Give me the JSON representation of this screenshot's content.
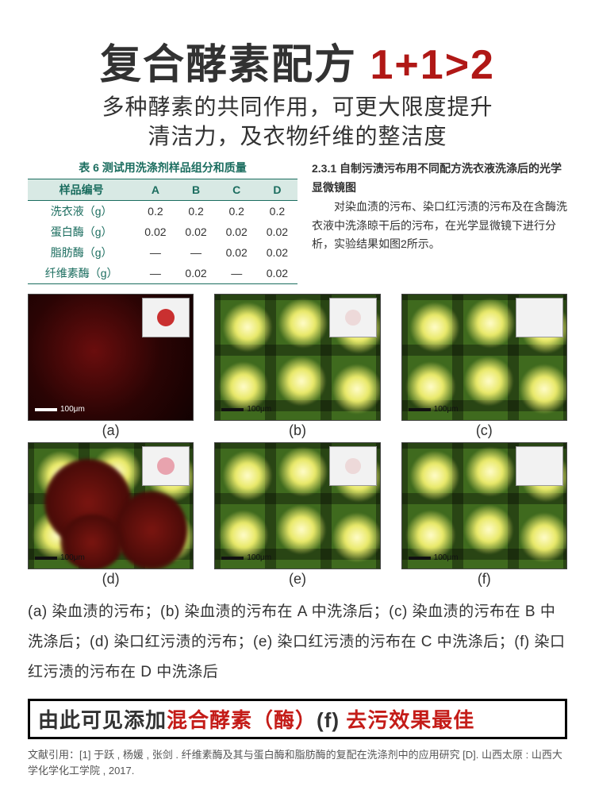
{
  "headline": {
    "black": "复合酵素配方",
    "red": "1+1>2"
  },
  "subhead": {
    "line1": "多种酵素的共同作用，可更大限度提升",
    "line2": "清洁力，及衣物纤维的整洁度"
  },
  "table": {
    "caption": "表 6 测试用洗涤剂样品组分和质量",
    "header": [
      "样品编号",
      "A",
      "B",
      "C",
      "D"
    ],
    "rows": [
      [
        "洗衣液（g）",
        "0.2",
        "0.2",
        "0.2",
        "0.2"
      ],
      [
        "蛋白酶（g）",
        "0.02",
        "0.02",
        "0.02",
        "0.02"
      ],
      [
        "脂肪酶（g）",
        "—",
        "—",
        "0.02",
        "0.02"
      ],
      [
        "纤维素酶（g）",
        "—",
        "0.02",
        "—",
        "0.02"
      ]
    ],
    "header_bg": "#d8e9e4",
    "header_color": "#1b6d5f",
    "border_color": "#1b6d5f"
  },
  "paragraph": {
    "title": "2.3.1 自制污渍污布用不同配方洗衣液洗涤后的光学显微镜图",
    "body": "对染血渍的污布、染口红污渍的污布及在含酶洗衣液中洗涤晾干后的污布，在光学显微镜下进行分析，实验结果如图2所示。"
  },
  "panels": {
    "scalebar_text": "100μm",
    "items": [
      {
        "id": "a",
        "label": "(a)",
        "style": "red",
        "inset_dot": "red",
        "scale_color": "light"
      },
      {
        "id": "b",
        "label": "(b)",
        "style": "green",
        "inset_dot": "faint",
        "scale_color": "dark"
      },
      {
        "id": "c",
        "label": "(c)",
        "style": "green",
        "inset_dot": "none",
        "scale_color": "dark"
      },
      {
        "id": "d",
        "label": "(d)",
        "style": "mixed",
        "inset_dot": "pink",
        "scale_color": "dark"
      },
      {
        "id": "e",
        "label": "(e)",
        "style": "green",
        "inset_dot": "faint",
        "scale_color": "dark"
      },
      {
        "id": "f",
        "label": "(f)",
        "style": "green",
        "inset_dot": "none",
        "scale_color": "dark"
      }
    ]
  },
  "figure_caption": "(a) 染血渍的污布；(b) 染血渍的污布在 A 中洗涤后；(c) 染血渍的污布在 B 中洗涤后；(d) 染口红污渍的污布；(e) 染口红污渍的污布在 C 中洗涤后；(f) 染口红污渍的污布在 D 中洗涤后",
  "conclusion": {
    "p1": "由此可见添加",
    "p2_red": "混合酵素（酶）",
    "p3": "(f) ",
    "p4_red": "去污效果最佳"
  },
  "reference": "文献引用：[1] 于跃 , 杨媛 , 张剑 . 纤维素酶及其与蛋白酶和脂肪酶的复配在洗涤剂中的应用研究 [D]. 山西太原 : 山西大学化学化工学院 , 2017.",
  "colors": {
    "accent_red": "#b01816",
    "text_main": "#323232",
    "green_fabric": "#3f6a1e",
    "red_fabric": "#2a0404"
  }
}
